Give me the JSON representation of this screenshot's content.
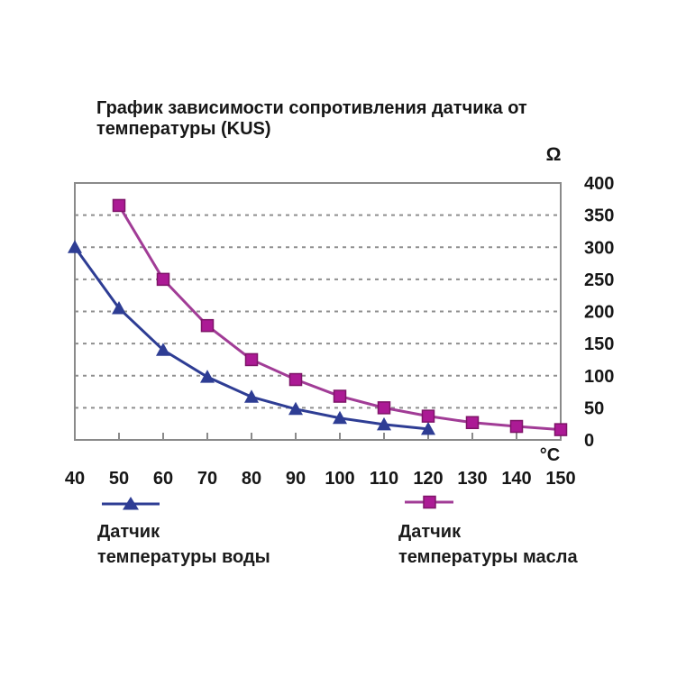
{
  "page": {
    "background": "#ffffff"
  },
  "colors": {
    "text": "#161616",
    "grid": "#8f8f8f",
    "frame": "#8a8a8a"
  },
  "chart_data": {
    "type": "line",
    "title": "График зависимости сопротивления датчика от температуры (KUS)",
    "title_lines": [
      "График зависимости сопротивления датчика от",
      "температуры (KUS)"
    ],
    "xlabel": "°C",
    "ylabel": "Ω",
    "xlim": [
      40,
      150
    ],
    "ylim": [
      0,
      400
    ],
    "x_ticks": [
      40,
      50,
      60,
      70,
      80,
      90,
      100,
      110,
      120,
      130,
      140,
      150
    ],
    "y_ticks": [
      0,
      50,
      100,
      150,
      200,
      250,
      300,
      350,
      400
    ],
    "grid": "horizontal dashed",
    "y_labels_side": "right",
    "legend_position": "bottom",
    "series": [
      {
        "id": "water-temp-sensor",
        "name": "Датчик температуры воды",
        "marker": "triangle",
        "color": "#2e3d94",
        "line_color": "#2e3d94",
        "edge_color": "#232e75",
        "x": [
          40,
          50,
          60,
          70,
          80,
          90,
          100,
          110,
          120
        ],
        "values": [
          300,
          205,
          140,
          98,
          67,
          48,
          34,
          24,
          17
        ]
      },
      {
        "id": "oil-temp-sensor",
        "name": "Датчик температуры масла",
        "marker": "square",
        "color": "#ac1a95",
        "line_color": "#a13c96",
        "edge_color": "#7e1468",
        "x": [
          50,
          60,
          70,
          80,
          90,
          100,
          110,
          120,
          130,
          140,
          150
        ],
        "values": [
          365,
          250,
          178,
          125,
          94,
          68,
          50,
          37,
          27,
          21,
          16
        ]
      }
    ]
  },
  "legend": {
    "items": [
      {
        "line1": "Датчик",
        "line2": "температуры воды"
      },
      {
        "line1": "Датчик",
        "line2": "температуры масла"
      }
    ]
  }
}
